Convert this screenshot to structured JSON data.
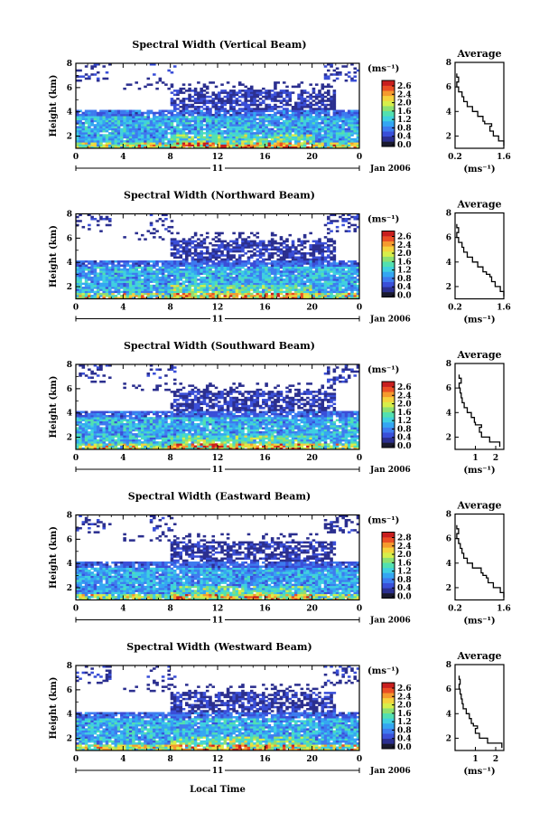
{
  "common": {
    "time_ticks": [
      "0",
      "4",
      "8",
      "12",
      "16",
      "20",
      "0"
    ],
    "day_label": "11",
    "month_label": "Jan 2006",
    "xlabel": "Local Time",
    "ylabel": "Height (km)",
    "height_ticks": [
      "2",
      "4",
      "6",
      "8"
    ],
    "colorbar_unit": "(ms⁻¹)",
    "avg_title": "Average",
    "avg_unit": "(ms⁻¹)",
    "colormap": [
      "#1a1a2e",
      "#2b2f8f",
      "#3a4fd8",
      "#3d7bef",
      "#34a6f2",
      "#3fd0e0",
      "#52e0b0",
      "#8ee070",
      "#d6ee4a",
      "#f5d23c",
      "#f59a2e",
      "#ea4e24",
      "#c81e1e"
    ]
  },
  "chart_data": [
    {
      "type": "heatmap",
      "title": "Spectral Width (Vertical Beam)",
      "xlabel": "Local Time",
      "ylabel": "Height (km)",
      "xlim": [
        0,
        24
      ],
      "ylim": [
        1,
        8
      ],
      "colorbar_ticks": [
        "2.6",
        "2.4",
        "2.0",
        "1.6",
        "1.2",
        "0.8",
        "0.4",
        "0.0"
      ],
      "colorbar_range": [
        0,
        2.6
      ],
      "average_profile": {
        "xlabel": "(ms⁻¹)",
        "xticks": [
          "0.2",
          "1.6"
        ],
        "xlim": [
          0.2,
          1.6
        ],
        "ylim": [
          1,
          8
        ],
        "height_km": [
          1.2,
          1.6,
          2.0,
          2.4,
          2.8,
          3.0,
          3.2,
          3.6,
          4.0,
          4.4,
          4.8,
          5.2,
          5.6,
          6.0,
          6.4,
          6.8
        ],
        "width_ms": [
          1.6,
          1.45,
          1.3,
          1.2,
          1.25,
          1.05,
          1.0,
          0.85,
          0.7,
          0.55,
          0.45,
          0.4,
          0.3,
          0.25,
          0.3,
          0.25
        ]
      }
    },
    {
      "type": "heatmap",
      "title": "Spectral Width (Northward Beam)",
      "xlabel": "Local Time",
      "ylabel": "Height (km)",
      "xlim": [
        0,
        24
      ],
      "ylim": [
        1,
        8
      ],
      "colorbar_ticks": [
        "2.6",
        "2.4",
        "2.0",
        "1.6",
        "1.2",
        "0.8",
        "0.4",
        "0.0"
      ],
      "colorbar_range": [
        0,
        2.6
      ],
      "average_profile": {
        "xlabel": "(ms⁻¹)",
        "xticks": [
          "0.2",
          "1.6"
        ],
        "xlim": [
          0.2,
          1.6
        ],
        "ylim": [
          1,
          8
        ],
        "height_km": [
          1.2,
          1.6,
          2.0,
          2.4,
          2.8,
          3.0,
          3.2,
          3.6,
          4.0,
          4.4,
          4.8,
          5.2,
          5.6,
          6.0,
          6.4,
          6.8
        ],
        "width_ms": [
          1.6,
          1.5,
          1.35,
          1.25,
          1.2,
          1.1,
          1.0,
          0.85,
          0.7,
          0.55,
          0.45,
          0.4,
          0.3,
          0.25,
          0.3,
          0.25
        ]
      }
    },
    {
      "type": "heatmap",
      "title": "Spectral Width (Southward Beam)",
      "xlabel": "Local Time",
      "ylabel": "Height (km)",
      "xlim": [
        0,
        24
      ],
      "ylim": [
        1,
        8
      ],
      "colorbar_ticks": [
        "2.6",
        "2.4",
        "2.0",
        "1.6",
        "1.2",
        "0.8",
        "0.4",
        "0.0"
      ],
      "colorbar_range": [
        0,
        2.6
      ],
      "average_profile": {
        "xlabel": "(ms⁻¹)",
        "xticks": [
          "1",
          "2"
        ],
        "xlim": [
          0,
          2.4
        ],
        "ylim": [
          1,
          8
        ],
        "height_km": [
          1.2,
          1.6,
          2.0,
          2.4,
          2.8,
          3.0,
          3.2,
          3.6,
          4.0,
          4.4,
          4.8,
          5.2,
          5.6,
          6.0,
          6.4,
          6.8
        ],
        "width_ms": [
          2.2,
          1.7,
          1.3,
          1.2,
          1.3,
          1.0,
          0.95,
          0.8,
          0.6,
          0.45,
          0.35,
          0.3,
          0.25,
          0.2,
          0.3,
          0.2
        ]
      }
    },
    {
      "type": "heatmap",
      "title": "Spectral Width (Eastward Beam)",
      "xlabel": "Local Time",
      "ylabel": "Height (km)",
      "xlim": [
        0,
        24
      ],
      "ylim": [
        1,
        8
      ],
      "colorbar_ticks": [
        "2.8",
        "2.4",
        "2.0",
        "1.6",
        "1.2",
        "0.8",
        "0.4",
        "0.0"
      ],
      "colorbar_range": [
        0,
        2.8
      ],
      "average_profile": {
        "xlabel": "(ms⁻¹)",
        "xticks": [
          "0.2",
          "1.6"
        ],
        "xlim": [
          0.2,
          1.6
        ],
        "ylim": [
          1,
          8
        ],
        "height_km": [
          1.2,
          1.6,
          2.0,
          2.4,
          2.8,
          3.0,
          3.2,
          3.6,
          4.0,
          4.4,
          4.8,
          5.2,
          5.6,
          6.0,
          6.4,
          6.8
        ],
        "width_ms": [
          1.6,
          1.5,
          1.3,
          1.15,
          1.1,
          1.0,
          0.95,
          0.7,
          0.55,
          0.45,
          0.4,
          0.35,
          0.3,
          0.25,
          0.3,
          0.25
        ]
      }
    },
    {
      "type": "heatmap",
      "title": "Spectral Width (Westward Beam)",
      "xlabel": "Local Time",
      "ylabel": "Height (km)",
      "xlim": [
        0,
        24
      ],
      "ylim": [
        1,
        8
      ],
      "colorbar_ticks": [
        "2.6",
        "2.4",
        "2.0",
        "1.6",
        "1.2",
        "0.8",
        "0.4",
        "0.0"
      ],
      "colorbar_range": [
        0,
        2.6
      ],
      "average_profile": {
        "xlabel": "(ms⁻¹)",
        "xticks": [
          "1",
          "2"
        ],
        "xlim": [
          0,
          2.4
        ],
        "ylim": [
          1,
          8
        ],
        "height_km": [
          1.2,
          1.6,
          2.0,
          2.4,
          2.8,
          3.0,
          3.2,
          3.6,
          4.0,
          4.4,
          4.8,
          5.2,
          5.6,
          6.0,
          6.4,
          6.8
        ],
        "width_ms": [
          2.3,
          1.6,
          1.2,
          1.0,
          1.1,
          0.9,
          0.8,
          0.7,
          0.55,
          0.4,
          0.35,
          0.3,
          0.25,
          0.2,
          0.25,
          0.2
        ]
      }
    }
  ]
}
